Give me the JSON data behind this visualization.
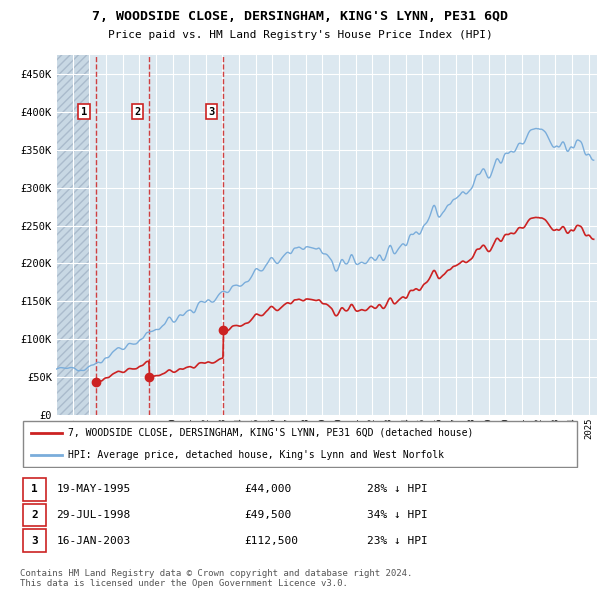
{
  "title": "7, WOODSIDE CLOSE, DERSINGHAM, KING'S LYNN, PE31 6QD",
  "subtitle": "Price paid vs. HM Land Registry's House Price Index (HPI)",
  "ylabel_ticks": [
    "£0",
    "£50K",
    "£100K",
    "£150K",
    "£200K",
    "£250K",
    "£300K",
    "£350K",
    "£400K",
    "£450K"
  ],
  "ytick_values": [
    0,
    50000,
    100000,
    150000,
    200000,
    250000,
    300000,
    350000,
    400000,
    450000
  ],
  "hpi_color": "#7aaddb",
  "price_color": "#cc2222",
  "transaction_color": "#cc2222",
  "legend_house": "7, WOODSIDE CLOSE, DERSINGHAM, KING'S LYNN, PE31 6QD (detached house)",
  "legend_hpi": "HPI: Average price, detached house, King's Lynn and West Norfolk",
  "transactions": [
    {
      "label": "1",
      "date": "19-MAY-1995",
      "price": 44000,
      "price_str": "£44,000",
      "pct": "28% ↓ HPI",
      "x_year": 1995.38
    },
    {
      "label": "2",
      "date": "29-JUL-1998",
      "price": 49500,
      "price_str": "£49,500",
      "pct": "34% ↓ HPI",
      "x_year": 1998.58
    },
    {
      "label": "3",
      "date": "16-JAN-2003",
      "price": 112500,
      "price_str": "£112,500",
      "pct": "23% ↓ HPI",
      "x_year": 2003.05
    }
  ],
  "footnote1": "Contains HM Land Registry data © Crown copyright and database right 2024.",
  "footnote2": "This data is licensed under the Open Government Licence v3.0.",
  "xlim": [
    1993,
    2025.5
  ],
  "ylim": [
    0,
    475000
  ],
  "background_plot": "#dce8f0",
  "background_hatch": "#c8d8e4",
  "grid_color": "#ffffff",
  "hatch_end_year": 1995.0
}
